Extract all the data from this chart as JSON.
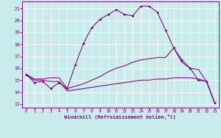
{
  "xlabel": "Windchill (Refroidissement éolien,°C)",
  "bg_color": "#c8ecec",
  "line_color": "#800080",
  "grid_color": "#ffffff",
  "xlim": [
    -0.5,
    23.5
  ],
  "ylim": [
    12.7,
    21.6
  ],
  "yticks": [
    13,
    14,
    15,
    16,
    17,
    18,
    19,
    20,
    21
  ],
  "xticks": [
    0,
    1,
    2,
    3,
    4,
    5,
    6,
    7,
    8,
    9,
    10,
    11,
    12,
    13,
    14,
    15,
    16,
    17,
    18,
    19,
    20,
    21,
    22,
    23
  ],
  "line1_x": [
    0,
    1,
    2,
    3,
    4,
    5,
    6,
    7,
    8,
    9,
    10,
    11,
    12,
    13,
    14,
    15,
    16,
    17,
    18,
    19,
    20,
    21,
    22,
    23
  ],
  "line1_y": [
    15.5,
    14.8,
    14.9,
    14.3,
    14.8,
    14.3,
    16.3,
    18.1,
    19.4,
    20.1,
    20.5,
    20.9,
    20.5,
    20.4,
    21.2,
    21.2,
    20.7,
    19.2,
    17.7,
    16.7,
    16.0,
    15.0,
    14.9,
    13.1
  ],
  "line2_x": [
    0,
    1,
    2,
    3,
    4,
    5,
    6,
    7,
    8,
    9,
    10,
    11,
    12,
    13,
    14,
    15,
    16,
    17,
    18,
    19,
    20,
    21,
    22,
    23
  ],
  "line2_y": [
    15.5,
    15.1,
    15.1,
    15.2,
    15.2,
    14.3,
    14.5,
    14.7,
    15.0,
    15.3,
    15.7,
    16.0,
    16.2,
    16.5,
    16.7,
    16.8,
    16.9,
    16.9,
    17.7,
    16.5,
    16.0,
    15.9,
    14.9,
    13.1
  ],
  "line3_x": [
    0,
    1,
    2,
    3,
    4,
    5,
    6,
    7,
    8,
    9,
    10,
    11,
    12,
    13,
    14,
    15,
    16,
    17,
    18,
    19,
    20,
    21,
    22,
    23
  ],
  "line3_y": [
    15.4,
    15.0,
    15.0,
    14.9,
    14.9,
    14.1,
    14.2,
    14.3,
    14.4,
    14.5,
    14.6,
    14.7,
    14.8,
    14.9,
    15.0,
    15.0,
    15.1,
    15.1,
    15.2,
    15.2,
    15.2,
    15.1,
    14.9,
    13.1
  ]
}
